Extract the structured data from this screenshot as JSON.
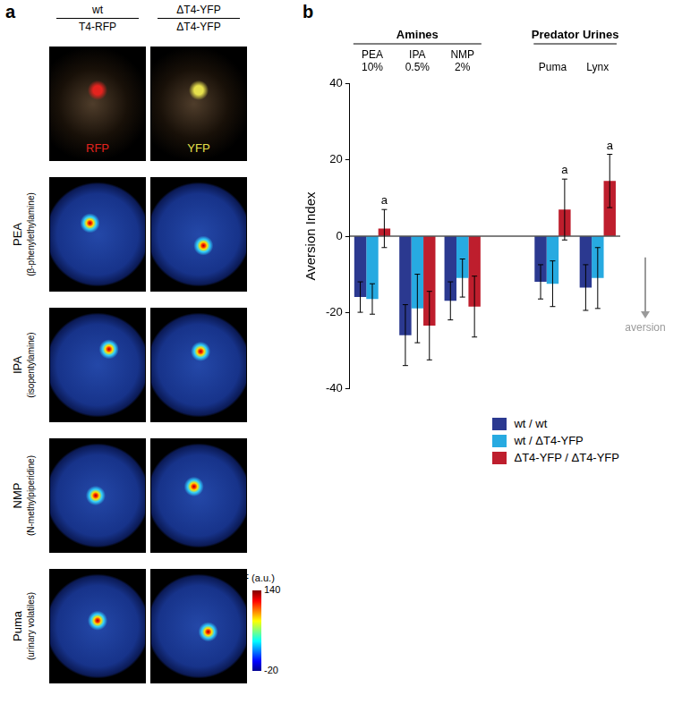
{
  "panel_labels": [
    "a",
    "b"
  ],
  "panel_a": {
    "columns": [
      {
        "genotype_top": "wt",
        "genotype_bottom": "T4-RFP",
        "channel": "RFP",
        "channel_color": "#e3231e"
      },
      {
        "genotype_top": "ΔT4-YFP",
        "genotype_bottom": "ΔT4-YFP",
        "channel": "YFP",
        "channel_color": "#e6e04c"
      }
    ],
    "rows": [
      {
        "label": "PEA",
        "sublabel": "(β-phenylethylamine)"
      },
      {
        "label": "IPA",
        "sublabel": "(isopentylamine)"
      },
      {
        "label": "NMP",
        "sublabel": "(N-methylpiperidine)"
      },
      {
        "label": "Puma",
        "sublabel": "(urinary volatiles)"
      }
    ],
    "colorbar": {
      "title": "ΔF (a.u.)",
      "range": [
        -20,
        140
      ],
      "ticks": [
        -20,
        140
      ]
    }
  },
  "chart_data": {
    "type": "bar",
    "y_label": "Aversion Index",
    "categories": [
      "PEA",
      "IPA",
      "NMP",
      null,
      "Puma",
      "Lynx"
    ],
    "category_notes": [
      "10%",
      "0.5%",
      "2%",
      null,
      null,
      null
    ],
    "groups": [
      {
        "label": "Amines",
        "categories": [
          "PEA",
          "IPA",
          "NMP"
        ]
      },
      {
        "label": "Predator Urines",
        "categories": [
          "Puma",
          "Lynx"
        ]
      }
    ],
    "series": [
      {
        "name": "wt / wt",
        "color": "#2b3990",
        "values": [
          -16,
          -26,
          -17,
          null,
          -12,
          -13.5
        ],
        "errors": [
          4,
          8,
          5,
          null,
          4.5,
          6
        ]
      },
      {
        "name": "wt / ΔT4-YFP",
        "color": "#27aae1",
        "values": [
          -16.5,
          -19,
          -11,
          null,
          -12.5,
          -11
        ],
        "errors": [
          4,
          9,
          5,
          null,
          6,
          8
        ]
      },
      {
        "name": "ΔT4-YFP / ΔT4-YFP",
        "color": "#be1e2d",
        "values": [
          2,
          -23.5,
          -18.5,
          null,
          7,
          14.5
        ],
        "errors": [
          5,
          9,
          8,
          null,
          8,
          7
        ]
      }
    ],
    "ylim": [
      -40,
      40
    ],
    "yticks": [
      -40,
      -20,
      0,
      20,
      40
    ],
    "grid": false,
    "legend": "lower right",
    "annotations": [
      {
        "text": "a",
        "series": "ΔT4-YFP / ΔT4-YFP",
        "category": "PEA"
      },
      {
        "text": "a",
        "series": "ΔT4-YFP / ΔT4-YFP",
        "category": "Puma"
      },
      {
        "text": "a",
        "series": "ΔT4-YFP / ΔT4-YFP",
        "category": "Lynx"
      },
      {
        "text": "aversion",
        "arrow": "down"
      }
    ]
  }
}
